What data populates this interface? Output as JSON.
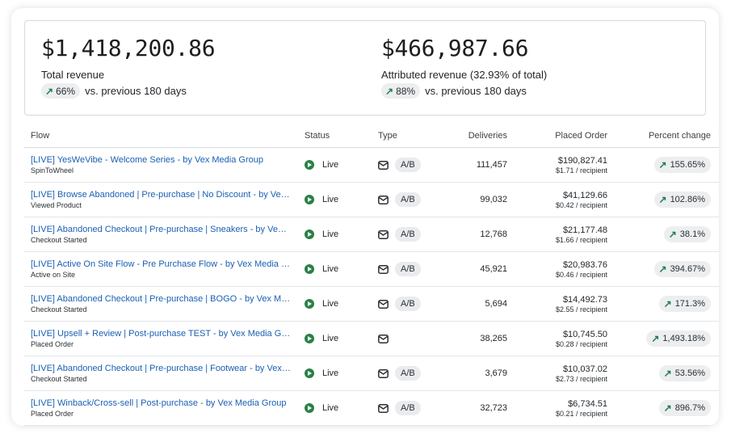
{
  "summary": {
    "total": {
      "value": "$1,418,200.86",
      "label": "Total revenue",
      "change_pct": "66%",
      "change_text": "vs. previous 180 days"
    },
    "attributed": {
      "value": "$466,987.66",
      "label": "Attributed revenue (32.93% of total)",
      "change_pct": "88%",
      "change_text": "vs. previous 180 days"
    }
  },
  "columns": {
    "flow": "Flow",
    "status": "Status",
    "type": "Type",
    "deliveries": "Deliveries",
    "placed_order": "Placed Order",
    "percent_change": "Percent change"
  },
  "rows": [
    {
      "name": "[LIVE] YesWeVibe - Welcome Series - by Vex Media Group",
      "trigger": "SpinToWheel",
      "status": "Live",
      "ab": "A/B",
      "deliveries": "111,457",
      "order": "$190,827.41",
      "per_recipient": "$1.71 / recipient",
      "pct": "155.65%"
    },
    {
      "name": "[LIVE] Browse Abandoned | Pre-purchase | No Discount - by Vex Media Group",
      "trigger": "Viewed Product",
      "status": "Live",
      "ab": "A/B",
      "deliveries": "99,032",
      "order": "$41,129.66",
      "per_recipient": "$0.42 / recipient",
      "pct": "102.86%"
    },
    {
      "name": "[LIVE] Abandoned Checkout | Pre-purchase | Sneakers - by Vex Media Group",
      "trigger": "Checkout Started",
      "status": "Live",
      "ab": "A/B",
      "deliveries": "12,768",
      "order": "$21,177.48",
      "per_recipient": "$1.66 / recipient",
      "pct": "38.1%"
    },
    {
      "name": "[LIVE] Active On Site Flow - Pre Purchase Flow - by Vex Media Group",
      "trigger": "Active on Site",
      "status": "Live",
      "ab": "A/B",
      "deliveries": "45,921",
      "order": "$20,983.76",
      "per_recipient": "$0.46 / recipient",
      "pct": "394.67%"
    },
    {
      "name": "[LIVE] Abandoned Checkout | Pre-purchase | BOGO - by Vex Media Group",
      "trigger": "Checkout Started",
      "status": "Live",
      "ab": "A/B",
      "deliveries": "5,694",
      "order": "$14,492.73",
      "per_recipient": "$2.55 / recipient",
      "pct": "171.3%"
    },
    {
      "name": "[LIVE] Upsell + Review | Post-purchase TEST - by Vex Media Group",
      "trigger": "Placed Order",
      "status": "Live",
      "ab": "",
      "deliveries": "38,265",
      "order": "$10,745.50",
      "per_recipient": "$0.28 / recipient",
      "pct": "1,493.18%"
    },
    {
      "name": "[LIVE] Abandoned Checkout | Pre-purchase | Footwear - by Vex Media Group",
      "trigger": "Checkout Started",
      "status": "Live",
      "ab": "A/B",
      "deliveries": "3,679",
      "order": "$10,037.02",
      "per_recipient": "$2.73 / recipient",
      "pct": "53.56%"
    },
    {
      "name": "[LIVE] Winback/Cross-sell | Post-purchase - by Vex Media Group",
      "trigger": "Placed Order",
      "status": "Live",
      "ab": "A/B",
      "deliveries": "32,723",
      "order": "$6,734.51",
      "per_recipient": "$0.21 / recipient",
      "pct": "896.7%"
    }
  ],
  "icons": {
    "status": "play-circle-icon",
    "type": "mail-icon",
    "change": "trend-up-arrow-icon"
  },
  "colors": {
    "link": "#1a5fb4",
    "live_green": "#2a8046",
    "trend_green": "#1e7d4a"
  }
}
